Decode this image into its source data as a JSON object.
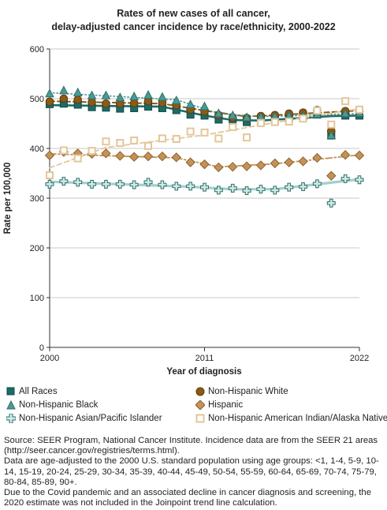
{
  "chart_data": {
    "type": "line",
    "title_lines": [
      "Rates of new cases of all cancer,",
      "delay-adjusted cancer incidence by race/ethnicity, 2000-2022"
    ],
    "xlabel": "Year of diagnosis",
    "ylabel": "Rate per 100,000",
    "xlim": [
      2000,
      2022
    ],
    "ylim": [
      0,
      600
    ],
    "x_ticks": [
      "2000",
      "2011",
      "2022"
    ],
    "y_ticks": [
      "0",
      "100",
      "200",
      "300",
      "400",
      "500",
      "600"
    ],
    "grid": "horizontal",
    "legend_position": "bottom",
    "x": [
      2000,
      2001,
      2002,
      2003,
      2004,
      2005,
      2006,
      2007,
      2008,
      2009,
      2010,
      2011,
      2012,
      2013,
      2014,
      2015,
      2016,
      2017,
      2018,
      2019,
      2020,
      2021,
      2022
    ],
    "series": [
      {
        "name": "All Races",
        "color": "#1c6b68",
        "marker": "square",
        "line_style": "solid",
        "values": [
          489,
          490,
          488,
          483,
          482,
          480,
          481,
          484,
          481,
          477,
          468,
          466,
          458,
          455,
          453,
          455,
          459,
          461,
          463,
          468,
          426,
          466,
          466
        ],
        "trend": [
          [
            2000,
            487
          ],
          [
            2008,
            484
          ],
          [
            2011,
            466
          ],
          [
            2013,
            457
          ],
          [
            2015,
            456
          ],
          [
            2020,
            465
          ],
          [
            2022,
            466
          ]
        ]
      },
      {
        "name": "Non-Hispanic White",
        "color": "#8b5a14",
        "marker": "circle",
        "line_style": "dash",
        "values": [
          494,
          500,
          498,
          493,
          490,
          490,
          491,
          495,
          492,
          487,
          478,
          474,
          467,
          462,
          461,
          465,
          467,
          470,
          472,
          477,
          435,
          475,
          474
        ],
        "trend": [
          [
            2000,
            495
          ],
          [
            2008,
            490
          ],
          [
            2011,
            476
          ],
          [
            2014,
            464
          ],
          [
            2018,
            470
          ],
          [
            2022,
            476
          ]
        ]
      },
      {
        "name": "Non-Hispanic Black",
        "color": "#4a9a96",
        "marker": "triangle",
        "line_style": "dot",
        "values": [
          510,
          516,
          512,
          506,
          506,
          502,
          504,
          507,
          503,
          496,
          488,
          484,
          470,
          466,
          462,
          463,
          464,
          465,
          465,
          468,
          426,
          470,
          471
        ],
        "trend": [
          [
            2000,
            512
          ],
          [
            2009,
            498
          ],
          [
            2012,
            470
          ],
          [
            2015,
            464
          ],
          [
            2022,
            470
          ]
        ]
      },
      {
        "name": "Hispanic",
        "color": "#c49255",
        "marker": "diamond",
        "line_style": "dashdot",
        "values": [
          386,
          393,
          390,
          389,
          390,
          385,
          383,
          384,
          384,
          382,
          372,
          368,
          362,
          363,
          364,
          366,
          370,
          372,
          374,
          381,
          345,
          387,
          386
        ],
        "trend": [
          [
            2000,
            389
          ],
          [
            2009,
            381
          ],
          [
            2012,
            363
          ],
          [
            2016,
            369
          ],
          [
            2022,
            387
          ]
        ]
      },
      {
        "name": "Non-Hispanic Asian/Pacific Islander",
        "color": "#9fd1cc",
        "marker": "cross",
        "line_style": "solid",
        "values": [
          328,
          334,
          332,
          328,
          328,
          328,
          327,
          332,
          327,
          324,
          324,
          322,
          316,
          320,
          315,
          318,
          316,
          322,
          323,
          329,
          290,
          339,
          337
        ],
        "trend": [
          [
            2000,
            333
          ],
          [
            2010,
            323
          ],
          [
            2013,
            318
          ],
          [
            2016,
            318
          ],
          [
            2022,
            338
          ]
        ]
      },
      {
        "name": "Non-Hispanic American Indian/Alaska Native",
        "color": "#e3c69a",
        "marker": "open-square",
        "line_style": "dash",
        "values": [
          346,
          396,
          380,
          395,
          414,
          411,
          416,
          405,
          420,
          419,
          434,
          432,
          420,
          443,
          422,
          451,
          453,
          454,
          460,
          476,
          448,
          495,
          478
        ],
        "trend": [
          [
            2000,
            361
          ],
          [
            2004,
            402
          ],
          [
            2011,
            427
          ],
          [
            2016,
            452
          ],
          [
            2022,
            480
          ]
        ]
      }
    ]
  },
  "source_note": [
    "Source: SEER Program, National Cancer Institute. Incidence data are from the SEER 21 areas (http://seer.cancer.gov/registries/terms.html).",
    "Data are age-adjusted to the 2000 U.S. standard population using age groups: <1, 1-4, 5-9, 10-14, 15-19, 20-24, 25-29, 30-34, 35-39, 40-44, 45-49, 50-54, 55-59, 60-64, 65-69, 70-74, 75-79, 80-84, 85-89, 90+.",
    "Due to the Covid pandemic and an associated decline in cancer diagnosis and screening, the 2020 estimate was not included in the Joinpoint trend line calculation."
  ]
}
